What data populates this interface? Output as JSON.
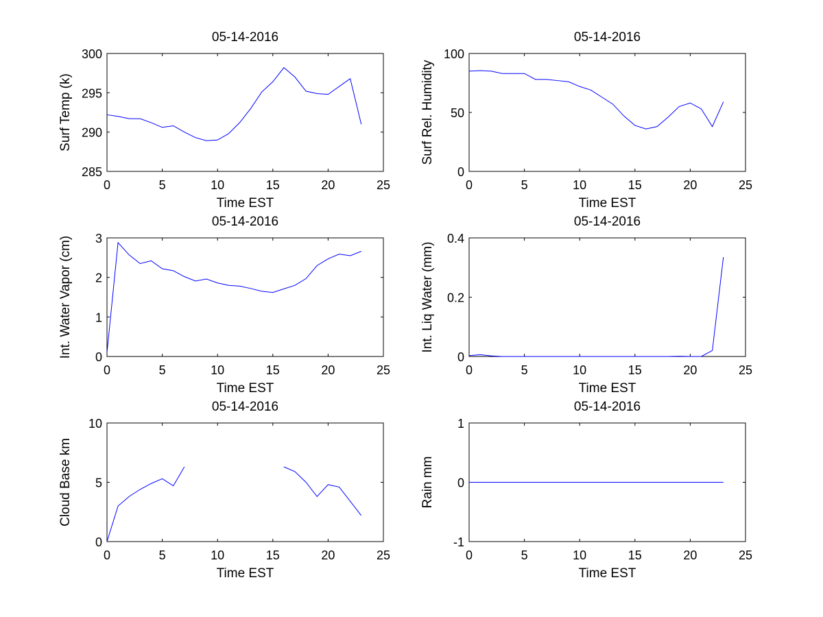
{
  "chart_data": [
    {
      "type": "line",
      "title": "05-14-2016",
      "xlabel": "Time EST",
      "ylabel": "Surf Temp (k)",
      "xlim": [
        0,
        25
      ],
      "ylim": [
        285,
        300
      ],
      "xticks": [
        "0",
        "5",
        "10",
        "15",
        "20",
        "25"
      ],
      "yticks": [
        "285",
        "290",
        "295",
        "300"
      ],
      "grid": false,
      "series": [
        {
          "color": "#0000ff",
          "x": [
            0,
            1,
            2,
            3,
            4,
            5,
            6,
            7,
            8,
            9,
            10,
            11,
            12,
            13,
            14,
            15,
            16,
            17,
            18,
            19,
            20,
            21,
            22,
            23
          ],
          "values": [
            292.2,
            292.0,
            291.7,
            291.7,
            291.2,
            290.6,
            290.8,
            290.0,
            289.3,
            288.9,
            289.0,
            289.8,
            291.2,
            293.0,
            295.1,
            296.4,
            298.2,
            297.0,
            295.2,
            294.9,
            294.8,
            295.8,
            296.8,
            291.0
          ]
        }
      ]
    },
    {
      "type": "line",
      "title": "05-14-2016",
      "xlabel": "Time EST",
      "ylabel": "Surf Rel. Humidity",
      "xlim": [
        0,
        25
      ],
      "ylim": [
        0,
        100
      ],
      "xticks": [
        "0",
        "5",
        "10",
        "15",
        "20",
        "25"
      ],
      "yticks": [
        "0",
        "50",
        "100"
      ],
      "grid": false,
      "series": [
        {
          "color": "#0000ff",
          "x": [
            0,
            1,
            2,
            3,
            4,
            5,
            6,
            7,
            8,
            9,
            10,
            11,
            12,
            13,
            14,
            15,
            16,
            17,
            18,
            19,
            20,
            21,
            22,
            23
          ],
          "values": [
            85,
            85.5,
            85,
            83,
            83,
            83,
            78,
            78,
            77,
            76,
            72,
            69,
            63,
            57,
            47,
            39,
            36,
            38,
            46,
            55,
            58,
            53,
            38,
            59
          ]
        }
      ]
    },
    {
      "type": "line",
      "title": "05-14-2016",
      "xlabel": "Time EST",
      "ylabel": "Int. Water Vapor (cm)",
      "xlim": [
        0,
        25
      ],
      "ylim": [
        0,
        3
      ],
      "xticks": [
        "0",
        "5",
        "10",
        "15",
        "20",
        "25"
      ],
      "yticks": [
        "0",
        "1",
        "2",
        "3"
      ],
      "grid": false,
      "series": [
        {
          "color": "#0000ff",
          "x": [
            0,
            1,
            2,
            3,
            4,
            5,
            6,
            7,
            8,
            9,
            10,
            11,
            12,
            13,
            14,
            15,
            16,
            17,
            18,
            19,
            20,
            21,
            22,
            23
          ],
          "values": [
            0.1,
            2.88,
            2.57,
            2.35,
            2.42,
            2.22,
            2.17,
            2.02,
            1.91,
            1.96,
            1.86,
            1.8,
            1.78,
            1.72,
            1.65,
            1.62,
            1.71,
            1.8,
            1.97,
            2.3,
            2.47,
            2.59,
            2.55,
            2.66
          ]
        }
      ]
    },
    {
      "type": "line",
      "title": "05-14-2016",
      "xlabel": "Time EST",
      "ylabel": "Int. Liq Water (mm)",
      "xlim": [
        0,
        25
      ],
      "ylim": [
        0,
        0.4
      ],
      "xticks": [
        "0",
        "5",
        "10",
        "15",
        "20",
        "25"
      ],
      "yticks": [
        "0",
        "0.2",
        "0.4"
      ],
      "grid": false,
      "series": [
        {
          "color": "#0000ff",
          "x": [
            0,
            1,
            2,
            3,
            4,
            5,
            6,
            7,
            8,
            9,
            10,
            11,
            12,
            13,
            14,
            15,
            16,
            17,
            18,
            19,
            20,
            21,
            22,
            23
          ],
          "values": [
            0.003,
            0.006,
            0.002,
            0,
            0,
            0,
            0,
            0,
            0,
            0,
            0,
            0,
            0,
            0,
            0,
            0,
            0,
            0,
            0,
            0.001,
            0,
            0,
            0.02,
            0.335
          ]
        }
      ]
    },
    {
      "type": "line",
      "title": "05-14-2016",
      "xlabel": "Time EST",
      "ylabel": "Cloud Base km",
      "xlim": [
        0,
        25
      ],
      "ylim": [
        0,
        10
      ],
      "xticks": [
        "0",
        "5",
        "10",
        "15",
        "20",
        "25"
      ],
      "yticks": [
        "0",
        "5",
        "10"
      ],
      "grid": false,
      "series": [
        {
          "color": "#0000ff",
          "x": [
            0,
            1,
            2,
            3,
            4,
            5,
            6,
            7,
            8,
            9,
            10,
            11,
            12,
            13,
            14,
            15,
            16,
            17,
            18,
            19,
            20,
            21,
            22,
            23
          ],
          "values": [
            0,
            3.0,
            3.8,
            4.4,
            4.9,
            5.3,
            4.7,
            6.3,
            null,
            null,
            null,
            null,
            null,
            null,
            null,
            null,
            6.3,
            5.9,
            5.0,
            3.8,
            4.8,
            4.6,
            3.4,
            2.2
          ]
        }
      ]
    },
    {
      "type": "line",
      "title": "05-14-2016",
      "xlabel": "Time EST",
      "ylabel": "Rain mm",
      "xlim": [
        0,
        25
      ],
      "ylim": [
        -1,
        1
      ],
      "xticks": [
        "0",
        "5",
        "10",
        "15",
        "20",
        "25"
      ],
      "yticks": [
        "-1",
        "0",
        "1"
      ],
      "grid": false,
      "series": [
        {
          "color": "#0000ff",
          "x": [
            0,
            1,
            2,
            3,
            4,
            5,
            6,
            7,
            8,
            9,
            10,
            11,
            12,
            13,
            14,
            15,
            16,
            17,
            18,
            19,
            20,
            21,
            22,
            23
          ],
          "values": [
            0,
            0,
            0,
            0,
            0,
            0,
            0,
            0,
            0,
            0,
            0,
            0,
            0,
            0,
            0,
            0,
            0,
            0,
            0,
            0,
            0,
            0,
            0,
            0
          ]
        }
      ]
    }
  ]
}
